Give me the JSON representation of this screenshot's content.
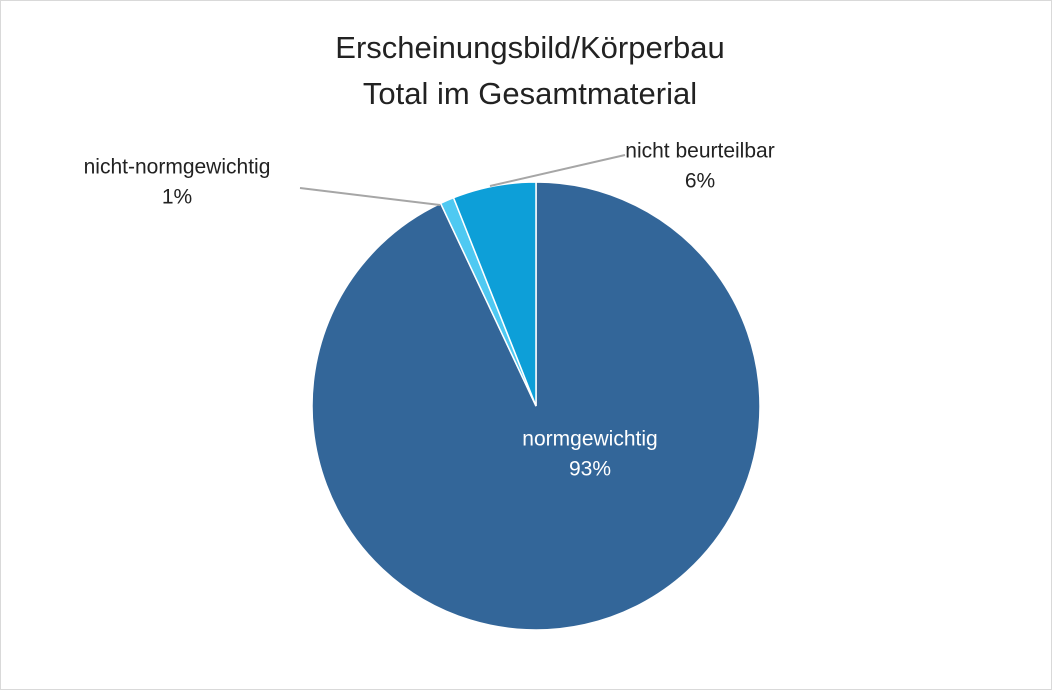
{
  "chart_data": {
    "type": "pie",
    "title": [
      "Erscheinungsbild/Körperbau",
      "Total im Gesamtmaterial"
    ],
    "categories": [
      "normgewichtig",
      "nicht-normgewichtig",
      "nicht beurteilbar"
    ],
    "values": [
      93,
      1,
      6
    ],
    "value_labels": [
      "93%",
      "1%",
      "6%"
    ],
    "colors": [
      "#336699",
      "#4fc9f2",
      "#0d9fd8"
    ]
  }
}
